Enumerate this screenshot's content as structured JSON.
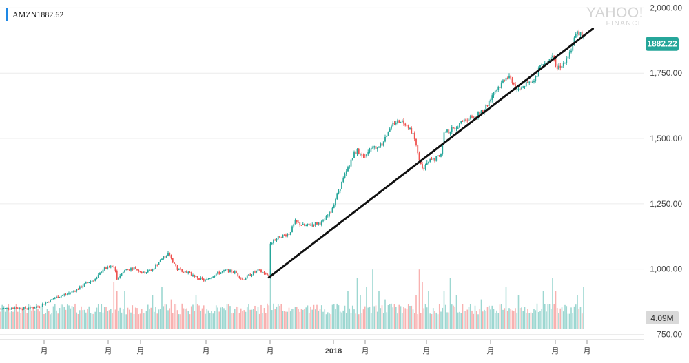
{
  "header": {
    "symbol": "AMZN",
    "last_price": "1882.62",
    "watermark_top": "YAHOO!",
    "watermark_bottom": "FINANCE",
    "ticker_color": "#1e88e5"
  },
  "badges": {
    "price": "1882.22",
    "volume": "4.09M",
    "price_color": "#26a69a"
  },
  "chart_data": {
    "type": "candlestick",
    "ylim": [
      738,
      2030
    ],
    "y_ticks": [
      "2,000.00",
      "1,750.00",
      "1,500.00",
      "1,250.00",
      "1,000.00",
      "750.00"
    ],
    "y_tick_values": [
      2000,
      1750,
      1500,
      1250,
      1000,
      750
    ],
    "x_ticks": [
      "月",
      "月",
      "月",
      "月",
      "月",
      "2018",
      "月",
      "月",
      "月",
      "月",
      "月"
    ],
    "up_color": "#26a69a",
    "down_color": "#ef5350",
    "price_anchors": [
      [
        0,
        848
      ],
      [
        8,
        852
      ],
      [
        16,
        850
      ],
      [
        24,
        856
      ],
      [
        28,
        868
      ],
      [
        35,
        890
      ],
      [
        43,
        905
      ],
      [
        50,
        925
      ],
      [
        55,
        945
      ],
      [
        62,
        965
      ],
      [
        66,
        1000
      ],
      [
        73,
        1010
      ],
      [
        75,
        965
      ],
      [
        80,
        995
      ],
      [
        86,
        1005
      ],
      [
        92,
        985
      ],
      [
        98,
        1000
      ],
      [
        104,
        1040
      ],
      [
        108,
        1060
      ],
      [
        110,
        1040
      ],
      [
        114,
        1000
      ],
      [
        120,
        990
      ],
      [
        126,
        970
      ],
      [
        132,
        955
      ],
      [
        138,
        980
      ],
      [
        146,
        995
      ],
      [
        152,
        985
      ],
      [
        156,
        960
      ],
      [
        160,
        975
      ],
      [
        166,
        995
      ],
      [
        170,
        985
      ],
      [
        173,
        968
      ],
      [
        174,
        1100
      ],
      [
        180,
        1125
      ],
      [
        186,
        1135
      ],
      [
        190,
        1180
      ],
      [
        196,
        1165
      ],
      [
        200,
        1170
      ],
      [
        208,
        1180
      ],
      [
        213,
        1220
      ],
      [
        216,
        1270
      ],
      [
        220,
        1330
      ],
      [
        224,
        1385
      ],
      [
        228,
        1440
      ],
      [
        230,
        1455
      ],
      [
        233,
        1430
      ],
      [
        236,
        1445
      ],
      [
        239,
        1470
      ],
      [
        242,
        1460
      ],
      [
        246,
        1480
      ],
      [
        250,
        1530
      ],
      [
        254,
        1560
      ],
      [
        258,
        1570
      ],
      [
        262,
        1555
      ],
      [
        266,
        1520
      ],
      [
        268,
        1470
      ],
      [
        270,
        1410
      ],
      [
        273,
        1380
      ],
      [
        276,
        1415
      ],
      [
        280,
        1420
      ],
      [
        284,
        1440
      ],
      [
        286,
        1520
      ],
      [
        290,
        1530
      ],
      [
        294,
        1545
      ],
      [
        298,
        1565
      ],
      [
        302,
        1580
      ],
      [
        306,
        1585
      ],
      [
        310,
        1600
      ],
      [
        314,
        1630
      ],
      [
        318,
        1680
      ],
      [
        322,
        1700
      ],
      [
        326,
        1740
      ],
      [
        330,
        1720
      ],
      [
        333,
        1680
      ],
      [
        336,
        1700
      ],
      [
        340,
        1710
      ],
      [
        344,
        1715
      ],
      [
        348,
        1780
      ],
      [
        352,
        1800
      ],
      [
        356,
        1815
      ],
      [
        358,
        1780
      ],
      [
        361,
        1765
      ],
      [
        364,
        1800
      ],
      [
        368,
        1840
      ],
      [
        370,
        1880
      ],
      [
        372,
        1900
      ],
      [
        374,
        1905
      ],
      [
        376,
        1885
      ]
    ],
    "volume_ylim": [
      0,
      15
    ],
    "volume_base_M": 3.5,
    "volume_spikes": [
      [
        73,
        11
      ],
      [
        75,
        9
      ],
      [
        80,
        9
      ],
      [
        98,
        8
      ],
      [
        104,
        10
      ],
      [
        110,
        7
      ],
      [
        126,
        8
      ],
      [
        170,
        5
      ],
      [
        172,
        6
      ],
      [
        174,
        14
      ],
      [
        176,
        6
      ],
      [
        224,
        9
      ],
      [
        230,
        12
      ],
      [
        232,
        8
      ],
      [
        236,
        10
      ],
      [
        240,
        14
      ],
      [
        244,
        9
      ],
      [
        248,
        7
      ],
      [
        252,
        6
      ],
      [
        268,
        8
      ],
      [
        270,
        14
      ],
      [
        272,
        11
      ],
      [
        276,
        9
      ],
      [
        286,
        9
      ],
      [
        290,
        12
      ],
      [
        294,
        8
      ],
      [
        310,
        7
      ],
      [
        326,
        10
      ],
      [
        334,
        8
      ],
      [
        346,
        6
      ],
      [
        350,
        9
      ],
      [
        356,
        12
      ],
      [
        358,
        9
      ],
      [
        372,
        8
      ],
      [
        376,
        10
      ]
    ],
    "trendline": [
      [
        173,
        968
      ],
      [
        382,
        1920
      ]
    ]
  }
}
